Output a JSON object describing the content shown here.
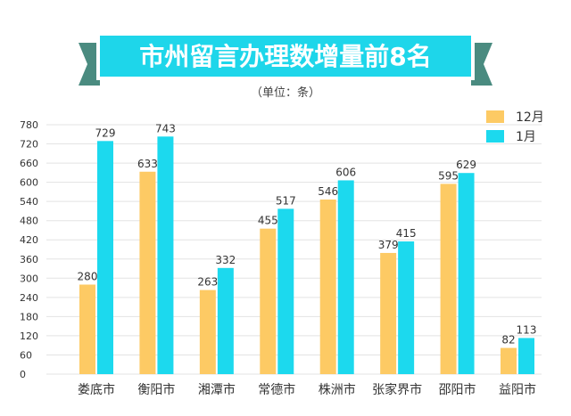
{
  "banner": {
    "title": "市州留言办理数增量前8名",
    "fill_color": "#1ed6ea",
    "ribbon_color": "#4a8b80"
  },
  "subtitle": "（单位：条）",
  "chart_data": {
    "type": "bar",
    "title": "市州留言办理数增量前8名",
    "subtitle": "（单位：条）",
    "categories": [
      "娄底市",
      "衡阳市",
      "湘潭市",
      "常德市",
      "株洲市",
      "张家界市",
      "邵阳市",
      "益阳市"
    ],
    "series": [
      {
        "name": "12月",
        "color": "#fdca64",
        "values": [
          280,
          633,
          263,
          455,
          546,
          379,
          595,
          82
        ]
      },
      {
        "name": "1月",
        "color": "#1cd9ee",
        "values": [
          729,
          743,
          332,
          517,
          606,
          415,
          629,
          113
        ]
      }
    ],
    "ylim": [
      0,
      780
    ],
    "yticks": [
      0,
      60,
      120,
      180,
      240,
      300,
      360,
      420,
      480,
      540,
      600,
      660,
      720,
      780
    ],
    "xlabel": "",
    "ylabel": "",
    "grid": true,
    "legend_position": "top-right",
    "data_labels": true
  }
}
